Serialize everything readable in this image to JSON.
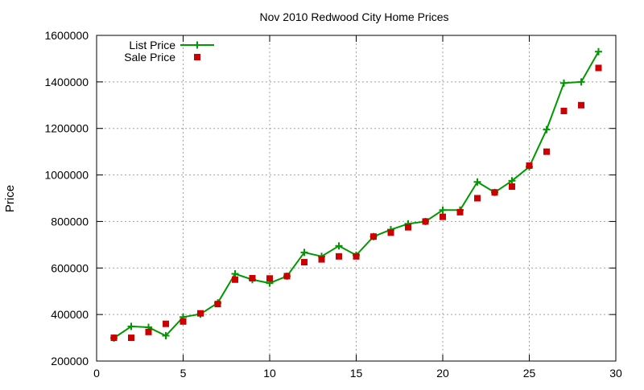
{
  "chart_data": {
    "type": "line",
    "title": "Nov 2010 Redwood City Home Prices",
    "xlabel": "",
    "ylabel": "Price",
    "xlim": [
      0,
      30
    ],
    "ylim": [
      200000,
      1600000
    ],
    "x_ticks": [
      0,
      5,
      10,
      15,
      20,
      25,
      30
    ],
    "y_ticks": [
      200000,
      400000,
      600000,
      800000,
      1000000,
      1200000,
      1400000,
      1600000
    ],
    "x_tick_labels": [
      "0",
      "5",
      "10",
      "15",
      "20",
      "25",
      "30"
    ],
    "y_tick_labels": [
      "200000",
      "400000",
      "600000",
      "800000",
      "1000000",
      "1200000",
      "1400000",
      "1600000"
    ],
    "grid": true,
    "legend_position": "top-left",
    "x": [
      1,
      2,
      3,
      4,
      5,
      6,
      7,
      8,
      9,
      10,
      11,
      12,
      13,
      14,
      15,
      16,
      17,
      18,
      19,
      20,
      21,
      22,
      23,
      24,
      25,
      26,
      27,
      28,
      29
    ],
    "series": [
      {
        "name": "List Price",
        "style": "line-with-plus-markers",
        "color": "#009900",
        "values": [
          299000,
          349000,
          345000,
          309000,
          389000,
          402000,
          450000,
          575000,
          550000,
          535000,
          565000,
          667000,
          650000,
          695000,
          655000,
          735000,
          765000,
          790000,
          800000,
          849000,
          849000,
          970000,
          925000,
          975000,
          1035000,
          1195000,
          1395000,
          1400000,
          1530000
        ]
      },
      {
        "name": "Sale Price",
        "style": "square-markers",
        "color": "#cc0000",
        "values": [
          300000,
          300000,
          325000,
          360000,
          370000,
          405000,
          445000,
          550000,
          556000,
          555000,
          565000,
          625000,
          637000,
          650000,
          650000,
          735000,
          752000,
          775000,
          800000,
          820000,
          840000,
          900000,
          925000,
          950000,
          1040000,
          1100000,
          1275000,
          1300000,
          1460000
        ]
      }
    ]
  }
}
